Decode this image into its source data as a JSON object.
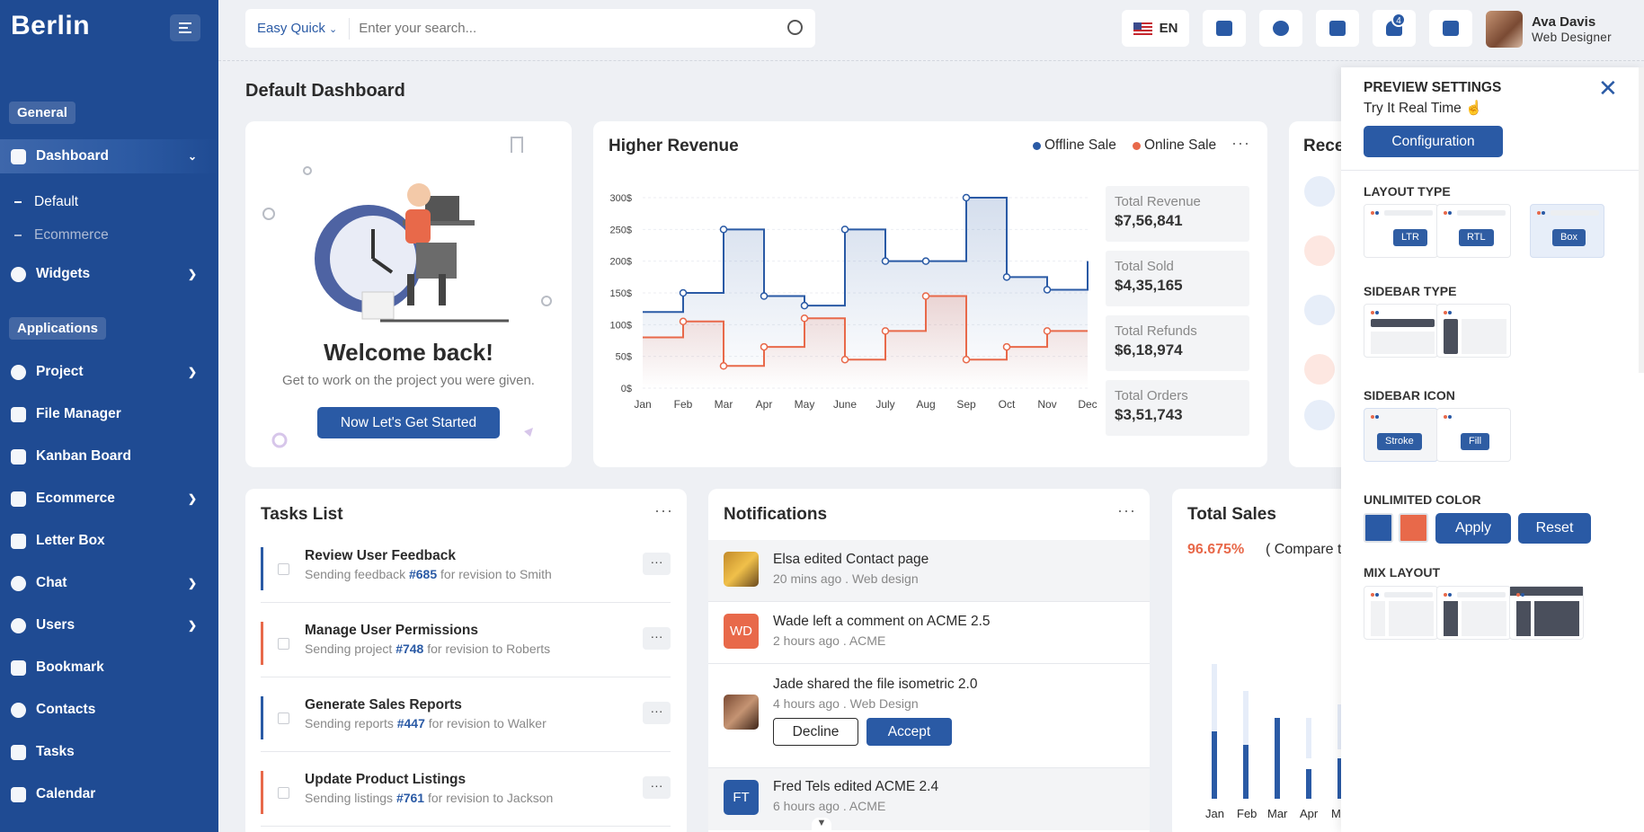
{
  "sidebar": {
    "logo": "Berlin",
    "section_general": "General",
    "section_applications": "Applications",
    "dashboard": "Dashboard",
    "sub_default": "Default",
    "sub_ecommerce": "Ecommerce",
    "widgets": "Widgets",
    "items": [
      "Project",
      "File Manager",
      "Kanban Board",
      "Ecommerce",
      "Letter Box",
      "Chat",
      "Users",
      "Bookmark",
      "Contacts",
      "Tasks",
      "Calendar"
    ]
  },
  "header": {
    "search_scope": "Easy Quick",
    "search_placeholder": "Enter your search...",
    "language": "EN",
    "notification_count": "4",
    "user_name": "Ava Davis",
    "user_role": "Web Designer"
  },
  "page_title": "Default Dashboard",
  "welcome": {
    "title": "Welcome back!",
    "subtitle": "Get to work on the project you were given.",
    "button": "Now Let's Get Started"
  },
  "revenue": {
    "title": "Higher Revenue",
    "legend_offline": "Offline Sale",
    "legend_online": "Online Sale",
    "stats": [
      {
        "label": "Total Revenue",
        "value": "$7,56,841"
      },
      {
        "label": "Total Sold",
        "value": "$4,35,165"
      },
      {
        "label": "Total Refunds",
        "value": "$6,18,974"
      },
      {
        "label": "Total Orders",
        "value": "$3,51,743"
      }
    ]
  },
  "chart_data": {
    "type": "line",
    "title": "Higher Revenue",
    "categories": [
      "Jan",
      "Feb",
      "Mar",
      "Apr",
      "May",
      "June",
      "July",
      "Aug",
      "Sep",
      "Oct",
      "Nov",
      "Dec"
    ],
    "y_ticks": [
      "0$",
      "50$",
      "100$",
      "150$",
      "200$",
      "250$",
      "300$"
    ],
    "ylim": [
      0,
      300
    ],
    "step": true,
    "legend": "top-right",
    "series": [
      {
        "name": "Offline Sale",
        "color": "#2a5aa5",
        "values": [
          120,
          150,
          250,
          145,
          130,
          250,
          200,
          200,
          300,
          175,
          155,
          200
        ]
      },
      {
        "name": "Online Sale",
        "color": "#e8694a",
        "values": [
          80,
          105,
          35,
          65,
          110,
          45,
          90,
          145,
          45,
          65,
          90,
          90
        ]
      }
    ]
  },
  "recent": {
    "title": "Rece"
  },
  "tasks": {
    "title": "Tasks List",
    "items": [
      {
        "title": "Review User Feedback",
        "pre": "Sending feedback ",
        "id": "#685",
        "post": " for revision to Smith",
        "color": "#2a5aa5"
      },
      {
        "title": "Manage User Permissions",
        "pre": "Sending project ",
        "id": "#748",
        "post": " for revision to Roberts",
        "color": "#e8694a"
      },
      {
        "title": "Generate Sales Reports",
        "pre": "Sending reports ",
        "id": "#447",
        "post": " for revision to Walker",
        "color": "#2a5aa5"
      },
      {
        "title": "Update Product Listings",
        "pre": "Sending listings ",
        "id": "#761",
        "post": " for revision to Jackson",
        "color": "#e8694a"
      }
    ]
  },
  "notifications": {
    "title": "Notifications",
    "items": [
      {
        "initials": "",
        "title": "Elsa edited Contact page",
        "sub": "20 mins ago . Web design"
      },
      {
        "initials": "WD",
        "title": "Wade left a comment on ACME 2.5",
        "sub": "2 hours ago . ACME"
      },
      {
        "initials": "",
        "title": "Jade shared the file isometric 2.0",
        "sub": "4 hours ago . Web Design"
      },
      {
        "initials": "FT",
        "title": "Fred Tels edited ACME 2.4",
        "sub": "6 hours ago . ACME"
      }
    ],
    "decline": "Decline",
    "accept": "Accept"
  },
  "sales": {
    "title": "Total Sales",
    "percent": "96.675%",
    "compare": "( Compare t",
    "months": [
      "Jan",
      "Feb",
      "Mar",
      "Apr",
      "Ma"
    ]
  },
  "preview": {
    "title": "PREVIEW SETTINGS",
    "subtitle": "Try It Real Time",
    "config_button": "Configuration",
    "layout_type": "LAYOUT TYPE",
    "layout_opts": [
      "LTR",
      "RTL",
      "Box"
    ],
    "sidebar_type": "SIDEBAR TYPE",
    "sidebar_icon": "SIDEBAR ICON",
    "icon_opts": [
      "Stroke",
      "Fill"
    ],
    "unlimited_color": "UNLIMITED COLOR",
    "apply": "Apply",
    "reset": "Reset",
    "mix_layout": "MIX LAYOUT",
    "colors": [
      "#2a5aa5",
      "#e8694a"
    ]
  }
}
